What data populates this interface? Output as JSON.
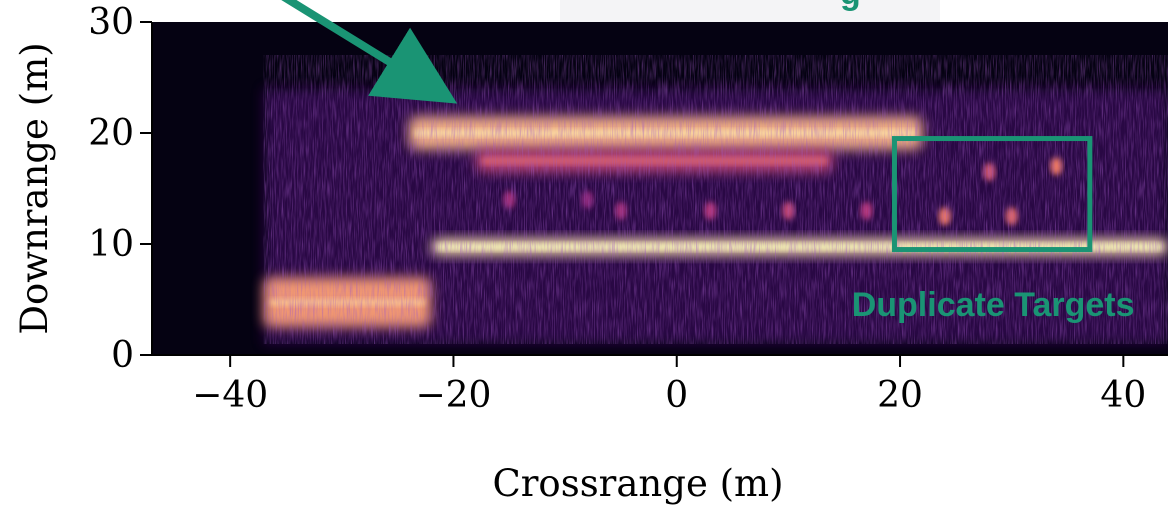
{
  "chart_data": {
    "type": "heatmap",
    "title": "",
    "xlabel": "Crossrange (m)",
    "ylabel": "Downrange (m)",
    "xlim": [
      -47,
      44
    ],
    "ylim": [
      0,
      30
    ],
    "xticks": [
      -40,
      -20,
      0,
      20,
      40
    ],
    "xtick_labels": [
      "−40",
      "−20",
      "0",
      "20",
      "40"
    ],
    "yticks": [
      0,
      10,
      20,
      30
    ],
    "ytick_labels": [
      "0",
      "10",
      "20",
      "30"
    ],
    "colormap": "magma",
    "grid": false,
    "features": [
      {
        "x0": -24,
        "x1": 22,
        "y0": 18.5,
        "y1": 21.5,
        "intensity": 0.85,
        "label": "upper-band"
      },
      {
        "x0": -18,
        "x1": 14,
        "y0": 16.5,
        "y1": 18.5,
        "intensity": 0.55,
        "label": "upper-band-lower-edge"
      },
      {
        "x0": -22,
        "x1": 44,
        "y0": 9.0,
        "y1": 10.5,
        "intensity": 0.95,
        "label": "middle-band"
      },
      {
        "x0": -37,
        "x1": -22,
        "y0": 2.5,
        "y1": 7.0,
        "intensity": 0.8,
        "label": "lower-left-cluster"
      }
    ],
    "points": [
      {
        "x": -5,
        "y": 13,
        "v": 0.45
      },
      {
        "x": 3,
        "y": 13,
        "v": 0.5
      },
      {
        "x": 10,
        "y": 13,
        "v": 0.55
      },
      {
        "x": 17,
        "y": 13,
        "v": 0.5
      },
      {
        "x": 24,
        "y": 12.5,
        "v": 0.7
      },
      {
        "x": 28,
        "y": 16.5,
        "v": 0.6
      },
      {
        "x": 30,
        "y": 12.5,
        "v": 0.65
      },
      {
        "x": 34,
        "y": 17,
        "v": 0.7
      },
      {
        "x": -15,
        "y": 14,
        "v": 0.45
      },
      {
        "x": -8,
        "y": 14,
        "v": 0.4
      }
    ],
    "annotations": [
      {
        "type": "box",
        "x0": 19.5,
        "x1": 37,
        "y0": 9.5,
        "y1": 19.5,
        "color": "#1a9474"
      },
      {
        "type": "text",
        "text": "Duplicate Targets",
        "x": 41,
        "y": 3.5,
        "color": "#1a9474"
      },
      {
        "type": "arrow",
        "from": [
          -38,
          34
        ],
        "to": [
          -22,
          24
        ],
        "color": "#1a9474"
      }
    ],
    "clipped_top_title_fragment": "g"
  }
}
